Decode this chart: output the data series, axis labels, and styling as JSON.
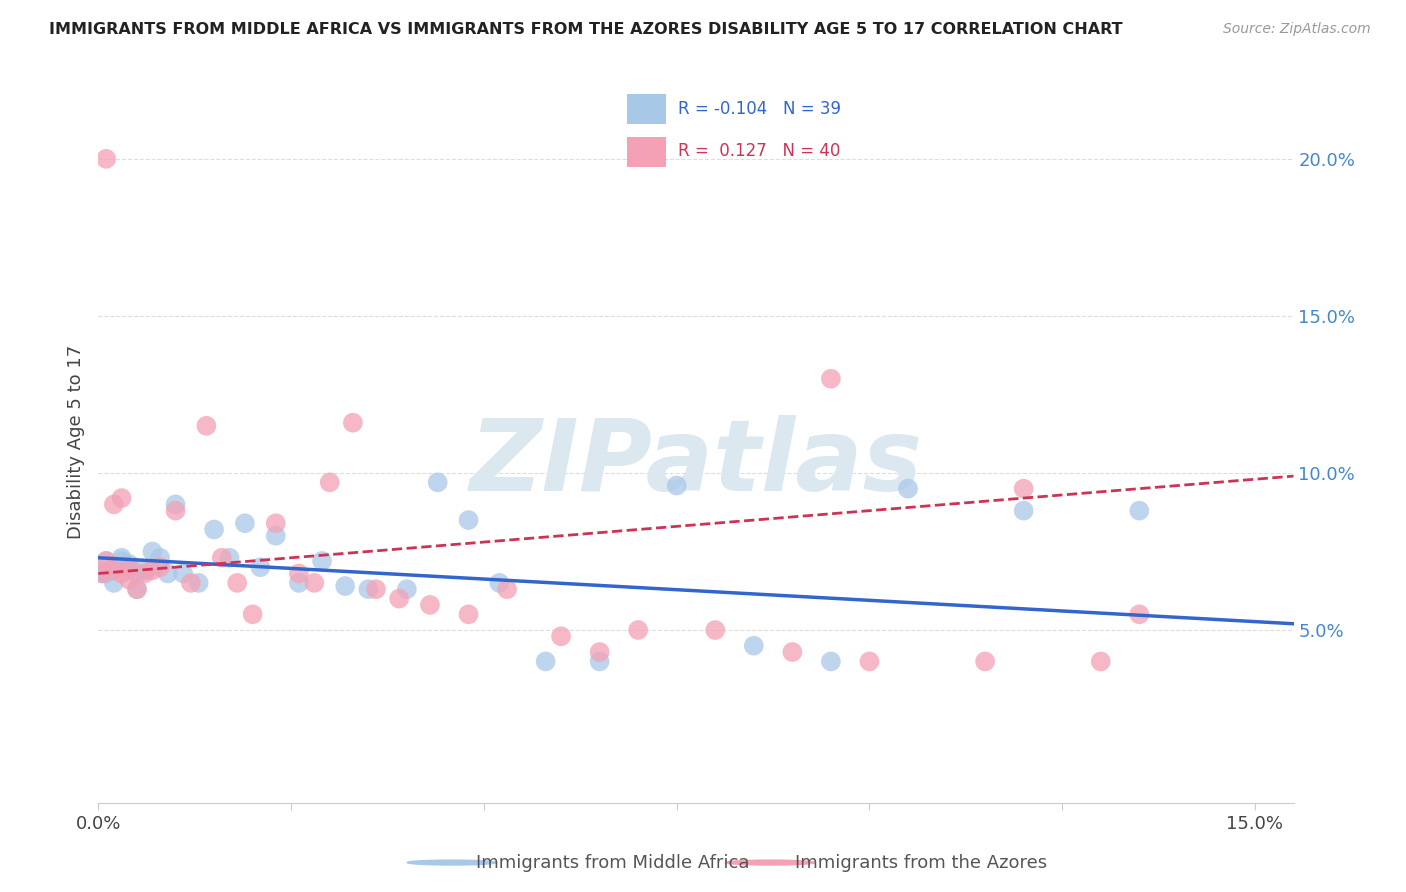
{
  "title": "IMMIGRANTS FROM MIDDLE AFRICA VS IMMIGRANTS FROM THE AZORES DISABILITY AGE 5 TO 17 CORRELATION CHART",
  "source": "Source: ZipAtlas.com",
  "ylabel": "Disability Age 5 to 17",
  "xlim": [
    0.0,
    0.155
  ],
  "ylim": [
    -0.005,
    0.225
  ],
  "yticks_right": [
    0.05,
    0.1,
    0.15,
    0.2
  ],
  "ytick_labels_right": [
    "5.0%",
    "10.0%",
    "15.0%",
    "20.0%"
  ],
  "R_blue": -0.104,
  "N_blue": 39,
  "R_pink": 0.127,
  "N_pink": 40,
  "color_blue": "#A8C8E8",
  "color_pink": "#F4A0B5",
  "color_blue_line": "#3366CC",
  "color_pink_line": "#CC3355",
  "legend_label_blue": "Immigrants from Middle Africa",
  "legend_label_pink": "Immigrants from the Azores",
  "watermark": "ZIPatlas",
  "blue_x": [
    0.0005,
    0.001,
    0.001,
    0.002,
    0.002,
    0.003,
    0.003,
    0.004,
    0.004,
    0.005,
    0.005,
    0.006,
    0.007,
    0.008,
    0.009,
    0.01,
    0.011,
    0.013,
    0.015,
    0.017,
    0.019,
    0.021,
    0.023,
    0.026,
    0.029,
    0.032,
    0.035,
    0.04,
    0.044,
    0.048,
    0.052,
    0.058,
    0.065,
    0.075,
    0.085,
    0.095,
    0.105,
    0.12,
    0.135
  ],
  "blue_y": [
    0.068,
    0.068,
    0.072,
    0.07,
    0.065,
    0.072,
    0.073,
    0.069,
    0.071,
    0.063,
    0.068,
    0.069,
    0.075,
    0.073,
    0.068,
    0.09,
    0.068,
    0.065,
    0.082,
    0.073,
    0.084,
    0.07,
    0.08,
    0.065,
    0.072,
    0.064,
    0.063,
    0.063,
    0.097,
    0.085,
    0.065,
    0.04,
    0.04,
    0.096,
    0.045,
    0.04,
    0.095,
    0.088,
    0.088
  ],
  "pink_x": [
    0.0005,
    0.001,
    0.001,
    0.002,
    0.002,
    0.003,
    0.003,
    0.004,
    0.004,
    0.005,
    0.006,
    0.007,
    0.008,
    0.01,
    0.012,
    0.014,
    0.016,
    0.018,
    0.02,
    0.023,
    0.026,
    0.028,
    0.03,
    0.033,
    0.036,
    0.039,
    0.043,
    0.048,
    0.053,
    0.06,
    0.065,
    0.07,
    0.08,
    0.09,
    0.095,
    0.1,
    0.115,
    0.12,
    0.13,
    0.135
  ],
  "pink_y": [
    0.068,
    0.2,
    0.072,
    0.069,
    0.09,
    0.068,
    0.092,
    0.066,
    0.07,
    0.063,
    0.068,
    0.069,
    0.07,
    0.088,
    0.065,
    0.115,
    0.073,
    0.065,
    0.055,
    0.084,
    0.068,
    0.065,
    0.097,
    0.116,
    0.063,
    0.06,
    0.058,
    0.055,
    0.063,
    0.048,
    0.043,
    0.05,
    0.05,
    0.043,
    0.13,
    0.04,
    0.04,
    0.095,
    0.04,
    0.055
  ]
}
